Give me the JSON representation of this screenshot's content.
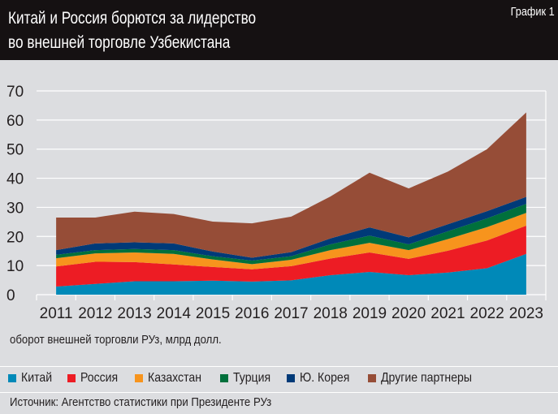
{
  "header": {
    "title_line1": "Китай и Россия борются за лидерство",
    "title_line2": "во внешней торговле Узбекистана",
    "chart_number": "График 1"
  },
  "footer": {
    "source": "Источник: Агентство статистики при Президенте РУз"
  },
  "chart_data": {
    "type": "area",
    "stacked": true,
    "title": "Китай и Россия борются за лидерство во внешней торговле Узбекистана",
    "ylabel": "оборот внешней торговли РУз, млрд долл.",
    "xlabel": "",
    "ylim": [
      0,
      70
    ],
    "yticks": [
      "0",
      "10",
      "20",
      "30",
      "40",
      "50",
      "60",
      "70"
    ],
    "grid": true,
    "legend_position": "bottom",
    "categories": [
      "2011",
      "2012",
      "2013",
      "2014",
      "2015",
      "2016",
      "2017",
      "2018",
      "2019",
      "2020",
      "2021",
      "2022",
      "2023"
    ],
    "series": [
      {
        "name": "Китай",
        "color": "#0089b8",
        "values": [
          2.8,
          3.7,
          4.6,
          4.6,
          4.8,
          4.5,
          4.9,
          6.7,
          7.8,
          6.7,
          7.6,
          9.1,
          14.0
        ]
      },
      {
        "name": "Россия",
        "color": "#ed1c24",
        "values": [
          6.9,
          7.6,
          6.6,
          5.8,
          4.7,
          4.2,
          4.9,
          5.7,
          6.7,
          5.6,
          7.5,
          9.5,
          9.7
        ]
      },
      {
        "name": "Казахстан",
        "color": "#f7941d",
        "values": [
          2.8,
          2.9,
          3.3,
          3.6,
          2.6,
          1.8,
          2.2,
          2.9,
          3.3,
          3.0,
          4.0,
          4.6,
          4.4
        ]
      },
      {
        "name": "Турция",
        "color": "#00703c",
        "values": [
          1.2,
          1.1,
          1.2,
          1.3,
          1.1,
          1.2,
          1.2,
          2.0,
          2.5,
          2.0,
          2.7,
          3.0,
          3.1
        ]
      },
      {
        "name": "Ю. Корея",
        "color": "#003a78",
        "values": [
          1.6,
          2.3,
          2.3,
          2.3,
          1.6,
          1.0,
          1.4,
          2.0,
          2.8,
          2.4,
          2.4,
          2.5,
          2.4
        ]
      },
      {
        "name": "Другие партнеры",
        "color": "#964d37",
        "values": [
          11.2,
          8.9,
          10.5,
          10.1,
          10.3,
          11.8,
          12.2,
          14.4,
          18.8,
          16.8,
          18.1,
          21.3,
          29.0
        ]
      }
    ]
  }
}
